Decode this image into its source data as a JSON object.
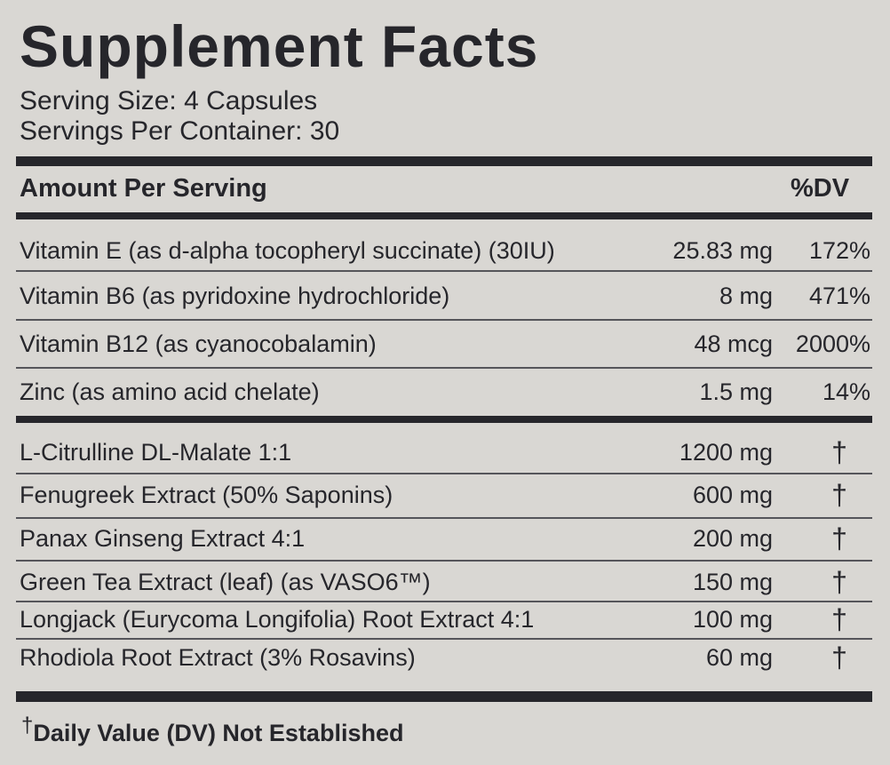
{
  "title": "Supplement Facts",
  "serving_size": "Serving Size: 4 Capsules",
  "servings_per_container": "Servings Per Container: 30",
  "header": {
    "amount": "Amount Per Serving",
    "dv": "%DV"
  },
  "vitamins": [
    {
      "name": "Vitamin E (as d-alpha tocopheryl succinate) (30IU)",
      "amount": "25.83 mg",
      "dv": "172%"
    },
    {
      "name": "Vitamin B6 (as pyridoxine hydrochloride)",
      "amount": "8 mg",
      "dv": "471%"
    },
    {
      "name": "Vitamin B12 (as cyanocobalamin)",
      "amount": "48 mcg",
      "dv": "2000%"
    },
    {
      "name": "Zinc (as amino acid chelate)",
      "amount": "1.5 mg",
      "dv": "14%"
    }
  ],
  "ingredients": [
    {
      "name": "L-Citrulline DL-Malate 1:1",
      "amount": "1200 mg",
      "dv": "†"
    },
    {
      "name": "Fenugreek Extract (50% Saponins)",
      "amount": "600 mg",
      "dv": "†"
    },
    {
      "name": "Panax Ginseng Extract 4:1",
      "amount": "200 mg",
      "dv": "†"
    },
    {
      "name": "Green Tea Extract (leaf) (as VASO6™)",
      "amount": "150 mg",
      "dv": "†"
    },
    {
      "name": "Longjack (Eurycoma Longifolia) Root Extract 4:1",
      "amount": "100 mg",
      "dv": "†"
    },
    {
      "name": "Rhodiola Root Extract (3% Rosavins)",
      "amount": "60 mg",
      "dv": "†"
    }
  ],
  "footnote": {
    "symbol": "†",
    "text": "Daily Value (DV) Not Established"
  }
}
